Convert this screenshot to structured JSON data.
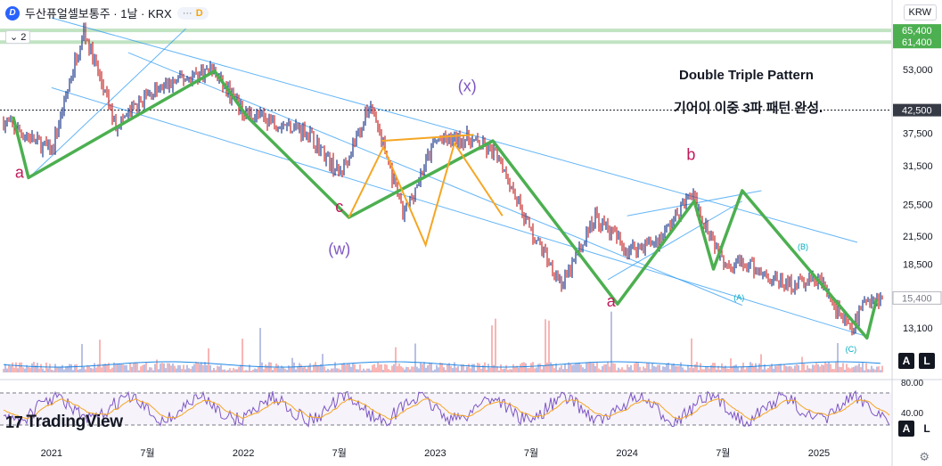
{
  "header": {
    "logo_letter": "D",
    "title": "두산퓨얼셀보통주 · 1날 · KRX",
    "badge_dots": "···",
    "badge_letter": "D",
    "indicator_toggle": "⌄ 2",
    "currency": "KRW"
  },
  "annotation": {
    "line1": "Double Triple Pattern",
    "line2": "기어이 이중 3파 패턴 완성."
  },
  "colors": {
    "wave_main": "#4caf50",
    "wave_orange": "#f5a623",
    "channel": "#2196f3",
    "price_up": "#1e3a8a",
    "price_down": "#c62828",
    "label_magenta": "#c2185b",
    "label_purple": "#7e57c2",
    "label_teal": "#26a69a",
    "label_orange": "#f5a623",
    "label_pink": "#e91e63",
    "label_cyan": "#00acc1",
    "price_axis_green": "#4caf50",
    "rsi_line": "#7e57c2",
    "rsi_ma": "#f5a623"
  },
  "chart_data": {
    "type": "line",
    "title": "",
    "scale": "log",
    "xlabel": "",
    "ylabel": "",
    "x_ticks": [
      "2021",
      "7월",
      "2022",
      "7월",
      "2023",
      "7월",
      "2024",
      "7월",
      "2025"
    ],
    "y_ticks": [
      "53,000",
      "37,500",
      "31,500",
      "25,500",
      "21,500",
      "18,500",
      "13,100"
    ],
    "price_labels": [
      {
        "text": "65,400",
        "style": "green"
      },
      {
        "text": "61,400",
        "style": "green"
      },
      {
        "text": "42,500",
        "style": "dark"
      },
      {
        "text": "15,400",
        "style": "outline"
      }
    ],
    "horizontal_levels": [
      65400,
      61400,
      42500
    ],
    "x": [
      "2020-10",
      "2021-01",
      "2021-03",
      "2021-05",
      "2021-07",
      "2021-09",
      "2021-11",
      "2022-01",
      "2022-03",
      "2022-05",
      "2022-07",
      "2022-09",
      "2022-11",
      "2023-01",
      "2023-03",
      "2023-05",
      "2023-07",
      "2023-09",
      "2023-11",
      "2024-01",
      "2024-03",
      "2024-05",
      "2024-07",
      "2024-09",
      "2024-11",
      "2025-01",
      "2025-03",
      "2025-04"
    ],
    "series": [
      {
        "values": [
          40000,
          34000,
          66000,
          39000,
          46000,
          50000,
          53000,
          42000,
          40000,
          38000,
          30000,
          44000,
          24000,
          36000,
          36500,
          33000,
          22000,
          16500,
          24000,
          20000,
          21000,
          27000,
          19000,
          18000,
          16500,
          17000,
          12800,
          15400
        ]
      }
    ],
    "wave_labels": [
      {
        "text": "a",
        "color": "magenta",
        "date": "2020-11",
        "price": 29500
      },
      {
        "text": "(w)",
        "color": "purple",
        "date": "2022-07",
        "price": 19500
      },
      {
        "text": "c",
        "color": "magenta",
        "date": "2022-07",
        "price": 24500
      },
      {
        "text": "(x)",
        "color": "purple",
        "date": "2023-03",
        "price": 47000
      },
      {
        "text": "a",
        "color": "magenta",
        "date": "2023-12",
        "price": 14700
      },
      {
        "text": "b",
        "color": "magenta",
        "date": "2024-05",
        "price": 32500
      },
      {
        "text": "(A)",
        "color": "cyan",
        "date": "2024-08",
        "price": 15200
      },
      {
        "text": "(B)",
        "color": "cyan",
        "date": "2024-12",
        "price": 20000
      },
      {
        "text": "(C)",
        "color": "cyan",
        "date": "2025-03",
        "price": 11500
      }
    ],
    "rsi": {
      "axis_labels": [
        "80.00",
        "40.00"
      ],
      "upper": 70,
      "lower": 30
    }
  },
  "bottom_bar": {
    "brand": "TradingView",
    "auto_label": "A",
    "log_label": "L"
  }
}
